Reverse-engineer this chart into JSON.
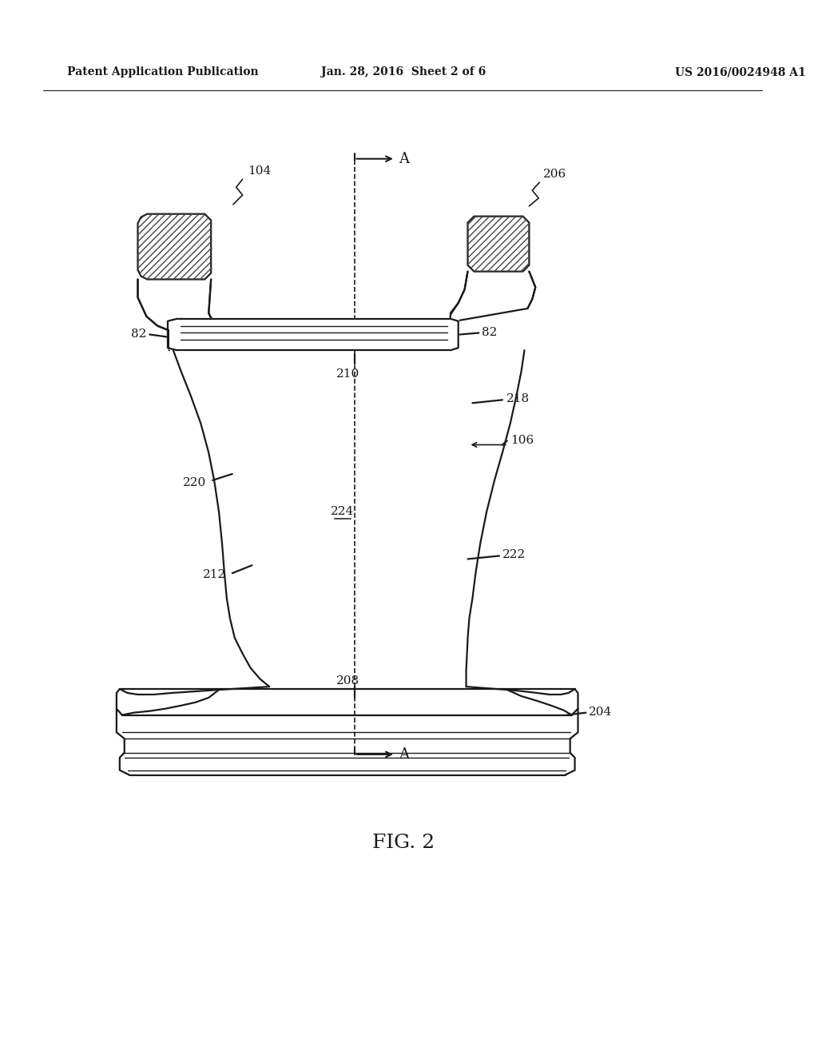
{
  "bg_color": "#ffffff",
  "line_color": "#1a1a1a",
  "header_left": "Patent Application Publication",
  "header_mid": "Jan. 28, 2016  Sheet 2 of 6",
  "header_right": "US 2016/0024948 A1",
  "figure_label": "FIG. 2"
}
